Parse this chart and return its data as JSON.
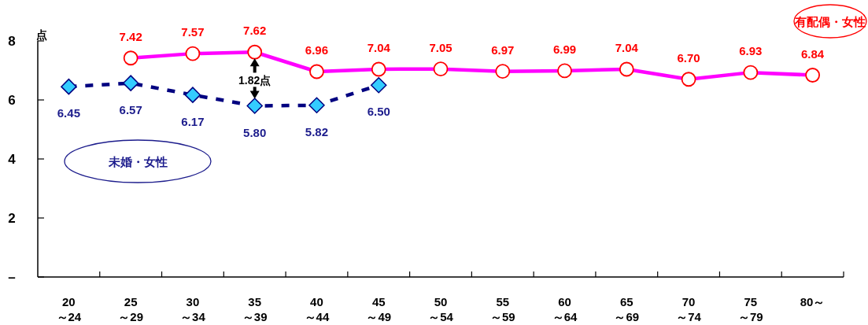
{
  "chart_data": {
    "type": "line",
    "ylabel": "点",
    "categories": [
      "20～24",
      "25～29",
      "30～34",
      "35～39",
      "40～44",
      "45～49",
      "50～54",
      "55～59",
      "60～64",
      "65～69",
      "70～74",
      "75～79",
      "80～"
    ],
    "series": [
      {
        "name": "未婚・女性",
        "color": "#000080",
        "marker": "diamond",
        "line_style": "dashed",
        "values": [
          6.45,
          6.57,
          6.17,
          5.8,
          5.82,
          6.5,
          null,
          null,
          null,
          null,
          null,
          null,
          null
        ],
        "value_labels": [
          "6.45",
          "6.57",
          "6.17",
          "5.80",
          "5.82",
          "6.50",
          null,
          null,
          null,
          null,
          null,
          null,
          null
        ]
      },
      {
        "name": "有配偶・女性",
        "color": "#ff00ff",
        "marker": "circle",
        "line_style": "solid",
        "values": [
          null,
          7.42,
          7.57,
          7.62,
          6.96,
          7.04,
          7.05,
          6.97,
          6.99,
          7.04,
          6.7,
          6.93,
          6.84
        ],
        "value_labels": [
          null,
          "7.42",
          "7.57",
          "7.62",
          "6.96",
          "7.04",
          "7.05",
          "6.97",
          "6.99",
          "7.04",
          "6.70",
          "6.93",
          "6.84"
        ]
      }
    ],
    "ylim": [
      0,
      8
    ],
    "yticks": [
      {
        "value": 0,
        "label": "–"
      },
      2,
      4,
      6,
      8
    ],
    "annotations": [
      {
        "text": "1.82点",
        "x": "35～39",
        "y": 7.62
      }
    ]
  }
}
